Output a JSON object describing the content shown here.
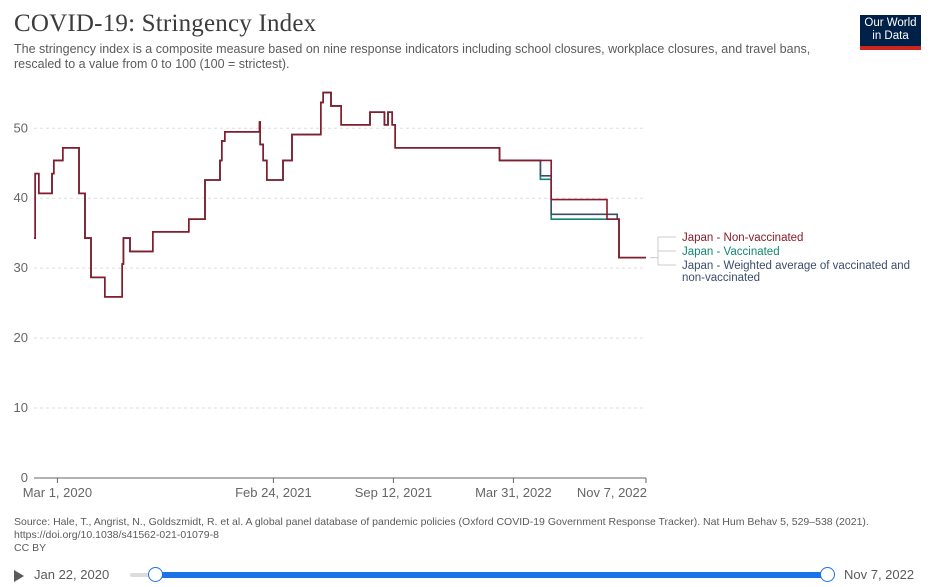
{
  "header": {
    "title": "COVID-19: Stringency Index",
    "subtitle": "The stringency index is a composite measure based on nine response indicators including school closures, workplace closures, and travel bans, rescaled to a value from 0 to 100 (100 = strictest).",
    "logo_line1": "Our World",
    "logo_line2": "in Data"
  },
  "footer": {
    "source": "Source: Hale, T., Angrist, N., Goldszmidt, R. et al. A global panel database of pandemic policies (Oxford COVID-19 Government Response Tracker). Nat Hum Behav 5, 529–538 (2021). https://doi.org/10.1038/s41562-021-01079-8",
    "license": "CC BY"
  },
  "timeline": {
    "start_label": "Jan 22, 2020",
    "end_label": "Nov 7, 2022",
    "range_start": 0,
    "range_end": 1
  },
  "colors": {
    "non_vaccinated": "#8b1a2b",
    "vaccinated": "#13866f",
    "weighted": "#3b4d6b",
    "grid": "#dddddd",
    "axis": "#666666"
  },
  "chart_data": {
    "type": "line",
    "title": "COVID-19: Stringency Index",
    "xlabel": "",
    "ylabel": "",
    "x_domain_days": [
      0,
      1020
    ],
    "ylim": [
      0,
      56
    ],
    "y_ticks": [
      0,
      10,
      20,
      30,
      40,
      50
    ],
    "x_ticks": [
      {
        "day": 39,
        "label": "Mar 1, 2020"
      },
      {
        "day": 399,
        "label": "Feb 24, 2021"
      },
      {
        "day": 599,
        "label": "Sep 12, 2021"
      },
      {
        "day": 799,
        "label": "Mar 31, 2022"
      },
      {
        "day": 1020,
        "label": "Nov 7, 2022"
      }
    ],
    "grid": true,
    "step": true,
    "series": [
      {
        "name": "Japan - Non-vaccinated",
        "color_key": "non_vaccinated",
        "points": [
          [
            0,
            34.3
          ],
          [
            2,
            43.5
          ],
          [
            8,
            40.7
          ],
          [
            30,
            43.5
          ],
          [
            33,
            45.4
          ],
          [
            48,
            47.2
          ],
          [
            75,
            40.7
          ],
          [
            85,
            34.3
          ],
          [
            95,
            28.7
          ],
          [
            118,
            25.9
          ],
          [
            147,
            30.6
          ],
          [
            149,
            34.3
          ],
          [
            160,
            32.4
          ],
          [
            198,
            35.2
          ],
          [
            258,
            37.0
          ],
          [
            285,
            42.6
          ],
          [
            310,
            45.4
          ],
          [
            313,
            48.2
          ],
          [
            318,
            49.5
          ],
          [
            375,
            49.5
          ],
          [
            376,
            50.9
          ],
          [
            377,
            47.7
          ],
          [
            382,
            45.4
          ],
          [
            388,
            42.6
          ],
          [
            415,
            45.4
          ],
          [
            430,
            49.1
          ],
          [
            478,
            49.1
          ],
          [
            478,
            53.7
          ],
          [
            482,
            55.1
          ],
          [
            495,
            53.2
          ],
          [
            512,
            50.5
          ],
          [
            558,
            50.5
          ],
          [
            560,
            52.3
          ],
          [
            584,
            50.5
          ],
          [
            590,
            52.3
          ],
          [
            597,
            50.5
          ],
          [
            602,
            47.2
          ],
          [
            775,
            47.2
          ],
          [
            776,
            45.4
          ],
          [
            860,
            45.4
          ],
          [
            862,
            39.8
          ],
          [
            953,
            39.8
          ],
          [
            955,
            37.0
          ],
          [
            972,
            37.0
          ],
          [
            975,
            31.5
          ],
          [
            1020,
            31.5
          ]
        ]
      },
      {
        "name": "Japan - Vaccinated",
        "color_key": "vaccinated",
        "points": [
          [
            0,
            34.3
          ],
          [
            2,
            43.5
          ],
          [
            8,
            40.7
          ],
          [
            30,
            43.5
          ],
          [
            33,
            45.4
          ],
          [
            48,
            47.2
          ],
          [
            75,
            40.7
          ],
          [
            85,
            34.3
          ],
          [
            95,
            28.7
          ],
          [
            118,
            25.9
          ],
          [
            147,
            30.6
          ],
          [
            149,
            34.3
          ],
          [
            160,
            32.4
          ],
          [
            198,
            35.2
          ],
          [
            258,
            37.0
          ],
          [
            285,
            42.6
          ],
          [
            310,
            45.4
          ],
          [
            313,
            48.2
          ],
          [
            318,
            49.5
          ],
          [
            375,
            49.5
          ],
          [
            376,
            50.9
          ],
          [
            377,
            47.7
          ],
          [
            382,
            45.4
          ],
          [
            388,
            42.6
          ],
          [
            415,
            45.4
          ],
          [
            430,
            49.1
          ],
          [
            478,
            49.1
          ],
          [
            478,
            53.7
          ],
          [
            482,
            55.1
          ],
          [
            495,
            53.2
          ],
          [
            512,
            50.5
          ],
          [
            558,
            50.5
          ],
          [
            560,
            52.3
          ],
          [
            584,
            50.5
          ],
          [
            590,
            52.3
          ],
          [
            597,
            50.5
          ],
          [
            602,
            47.2
          ],
          [
            775,
            47.2
          ],
          [
            776,
            45.4
          ],
          [
            842,
            45.4
          ],
          [
            844,
            42.7
          ],
          [
            860,
            42.7
          ],
          [
            862,
            37.0
          ],
          [
            955,
            37.0
          ],
          [
            972,
            37.0
          ],
          [
            975,
            31.5
          ],
          [
            1020,
            31.5
          ]
        ]
      },
      {
        "name": "Japan - Weighted average of vaccinated and non-vaccinated",
        "color_key": "weighted",
        "points": [
          [
            0,
            34.3
          ],
          [
            2,
            43.5
          ],
          [
            8,
            40.7
          ],
          [
            30,
            43.5
          ],
          [
            33,
            45.4
          ],
          [
            48,
            47.2
          ],
          [
            75,
            40.7
          ],
          [
            85,
            34.3
          ],
          [
            95,
            28.7
          ],
          [
            118,
            25.9
          ],
          [
            147,
            30.6
          ],
          [
            149,
            34.3
          ],
          [
            160,
            32.4
          ],
          [
            198,
            35.2
          ],
          [
            258,
            37.0
          ],
          [
            285,
            42.6
          ],
          [
            310,
            45.4
          ],
          [
            313,
            48.2
          ],
          [
            318,
            49.5
          ],
          [
            375,
            49.5
          ],
          [
            376,
            50.9
          ],
          [
            377,
            47.7
          ],
          [
            382,
            45.4
          ],
          [
            388,
            42.6
          ],
          [
            415,
            45.4
          ],
          [
            430,
            49.1
          ],
          [
            478,
            49.1
          ],
          [
            478,
            53.7
          ],
          [
            482,
            55.1
          ],
          [
            495,
            53.2
          ],
          [
            512,
            50.5
          ],
          [
            558,
            50.5
          ],
          [
            560,
            52.3
          ],
          [
            584,
            50.5
          ],
          [
            590,
            52.3
          ],
          [
            597,
            50.5
          ],
          [
            602,
            47.2
          ],
          [
            775,
            47.2
          ],
          [
            776,
            45.4
          ],
          [
            842,
            45.4
          ],
          [
            844,
            43.2
          ],
          [
            860,
            43.2
          ],
          [
            862,
            37.7
          ],
          [
            955,
            37.7
          ],
          [
            972,
            37.0
          ],
          [
            975,
            31.5
          ],
          [
            1020,
            31.5
          ]
        ]
      }
    ],
    "legend": [
      {
        "label": "Japan - Non-vaccinated",
        "color_key": "non_vaccinated"
      },
      {
        "label": "Japan - Vaccinated",
        "color_key": "vaccinated"
      },
      {
        "label": "Japan - Weighted average of vaccinated and",
        "label2": "non-vaccinated",
        "color_key": "weighted"
      }
    ],
    "legend_position": "right"
  }
}
